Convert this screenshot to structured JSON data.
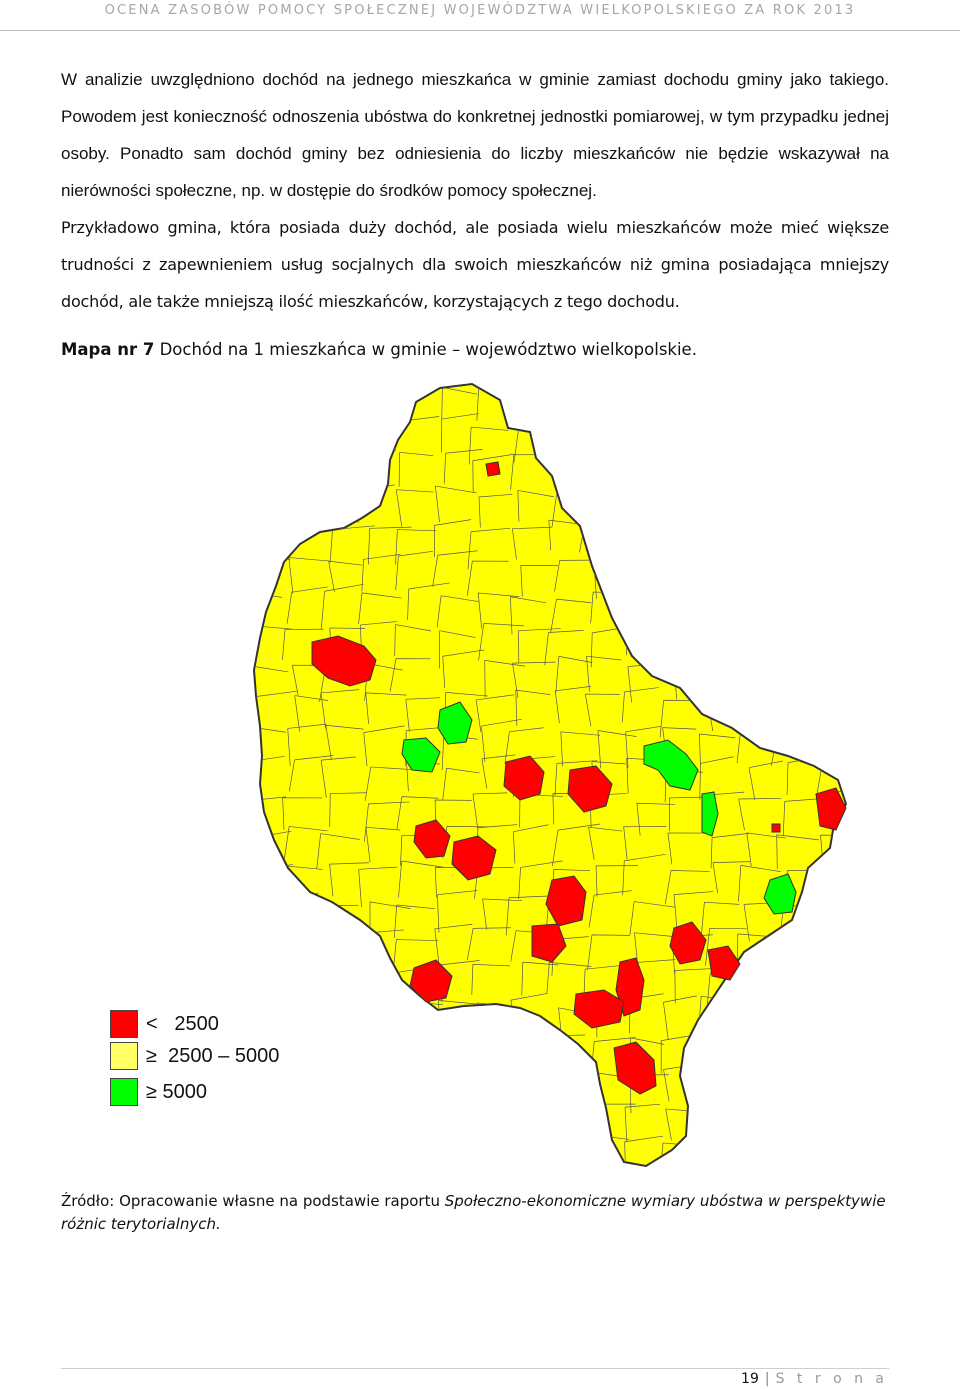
{
  "header": {
    "running_title": "OCENA ZASOBÓW POMOCY SPOŁECZNEJ WOJEWÓDZTWA WIELKOPOLSKIEGO ZA ROK 2013"
  },
  "body": {
    "paragraph1": "W analizie uwzględniono dochód na jednego mieszkańca w gminie zamiast dochodu gminy jako takiego. Powodem jest konieczność odnoszenia ubóstwa do konkretnej jednostki pomiarowej, w tym przypadku jednej osoby. Ponadto sam dochód gminy bez odniesienia do liczby mieszkańców nie będzie wskazywał na nierówności społeczne, np. w dostępie do środków pomocy społecznej.",
    "paragraph2": "Przykładowo gmina, która posiada duży dochód, ale posiada wielu mieszkańców może mieć większe trudności z zapewnieniem usług socjalnych dla swoich mieszkańców niż gmina posiadająca mniejszy dochód, ale także mniejszą ilość mieszkańców, korzystających z tego dochodu."
  },
  "map": {
    "caption_bold": "Mapa nr 7",
    "caption_rest": " Dochód na 1 mieszkańca w gminie – województwo wielkopolskie.",
    "legend": [
      {
        "label": "<   2500",
        "color": "#ff0000"
      },
      {
        "label": "≥  2500 – 5000",
        "color": "#ffff00"
      },
      {
        "label": "≥ 5000",
        "color": "#00ff00"
      }
    ],
    "colors": {
      "low": "#ff0000",
      "mid": "#ffff00",
      "high": "#00ff00",
      "border": "#333333"
    }
  },
  "source": {
    "prefix": "Źródło: Opracowanie własne na podstawie raportu ",
    "title": "Społeczno-ekonomiczne wymiary ubóstwa w perspektywie różnic terytorialnych."
  },
  "footer": {
    "page_number": "19",
    "separator": "|",
    "page_word": "S t r o n a"
  }
}
